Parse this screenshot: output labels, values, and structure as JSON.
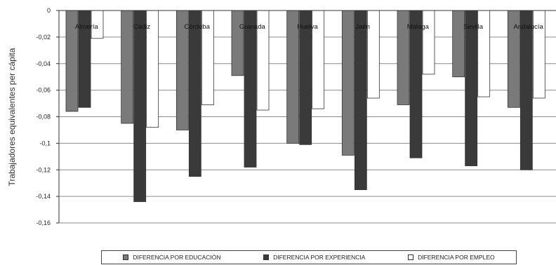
{
  "chart_data": {
    "type": "bar",
    "title": "",
    "xlabel": "",
    "ylabel": "Trabajadores equivalentes per cápita",
    "ylim": [
      -0.16,
      0
    ],
    "yticks": [
      "0",
      "-0,02",
      "-0,04",
      "-0,06",
      "-0,08",
      "-0,1",
      "-0,12",
      "-0,14",
      "-0,16"
    ],
    "ytick_values": [
      0,
      -0.02,
      -0.04,
      -0.06,
      -0.08,
      -0.1,
      -0.12,
      -0.14,
      -0.16
    ],
    "grid": true,
    "legend_position": "bottom",
    "categories": [
      "Almería",
      "Cádiz",
      "Córdoba",
      "Granada",
      "Huelva",
      "Jaén",
      "Málaga",
      "Sevilla",
      "Andalucía"
    ],
    "series": [
      {
        "name": "DIFERENCIA POR EDUCACIÓN",
        "color": "#7a7a7a",
        "values": [
          -0.076,
          -0.085,
          -0.09,
          -0.049,
          -0.1,
          -0.109,
          -0.071,
          -0.05,
          -0.073
        ]
      },
      {
        "name": "DIFERENCIA POR EXPERIENCIA",
        "color": "#3a3a3a",
        "values": [
          -0.073,
          -0.144,
          -0.125,
          -0.118,
          -0.101,
          -0.135,
          -0.111,
          -0.117,
          -0.12
        ]
      },
      {
        "name": "DIFERENCIA POR EMPLEO",
        "color": "#ffffff",
        "values": [
          -0.021,
          -0.088,
          -0.071,
          -0.075,
          -0.074,
          -0.066,
          -0.048,
          -0.065,
          -0.066
        ]
      }
    ]
  }
}
